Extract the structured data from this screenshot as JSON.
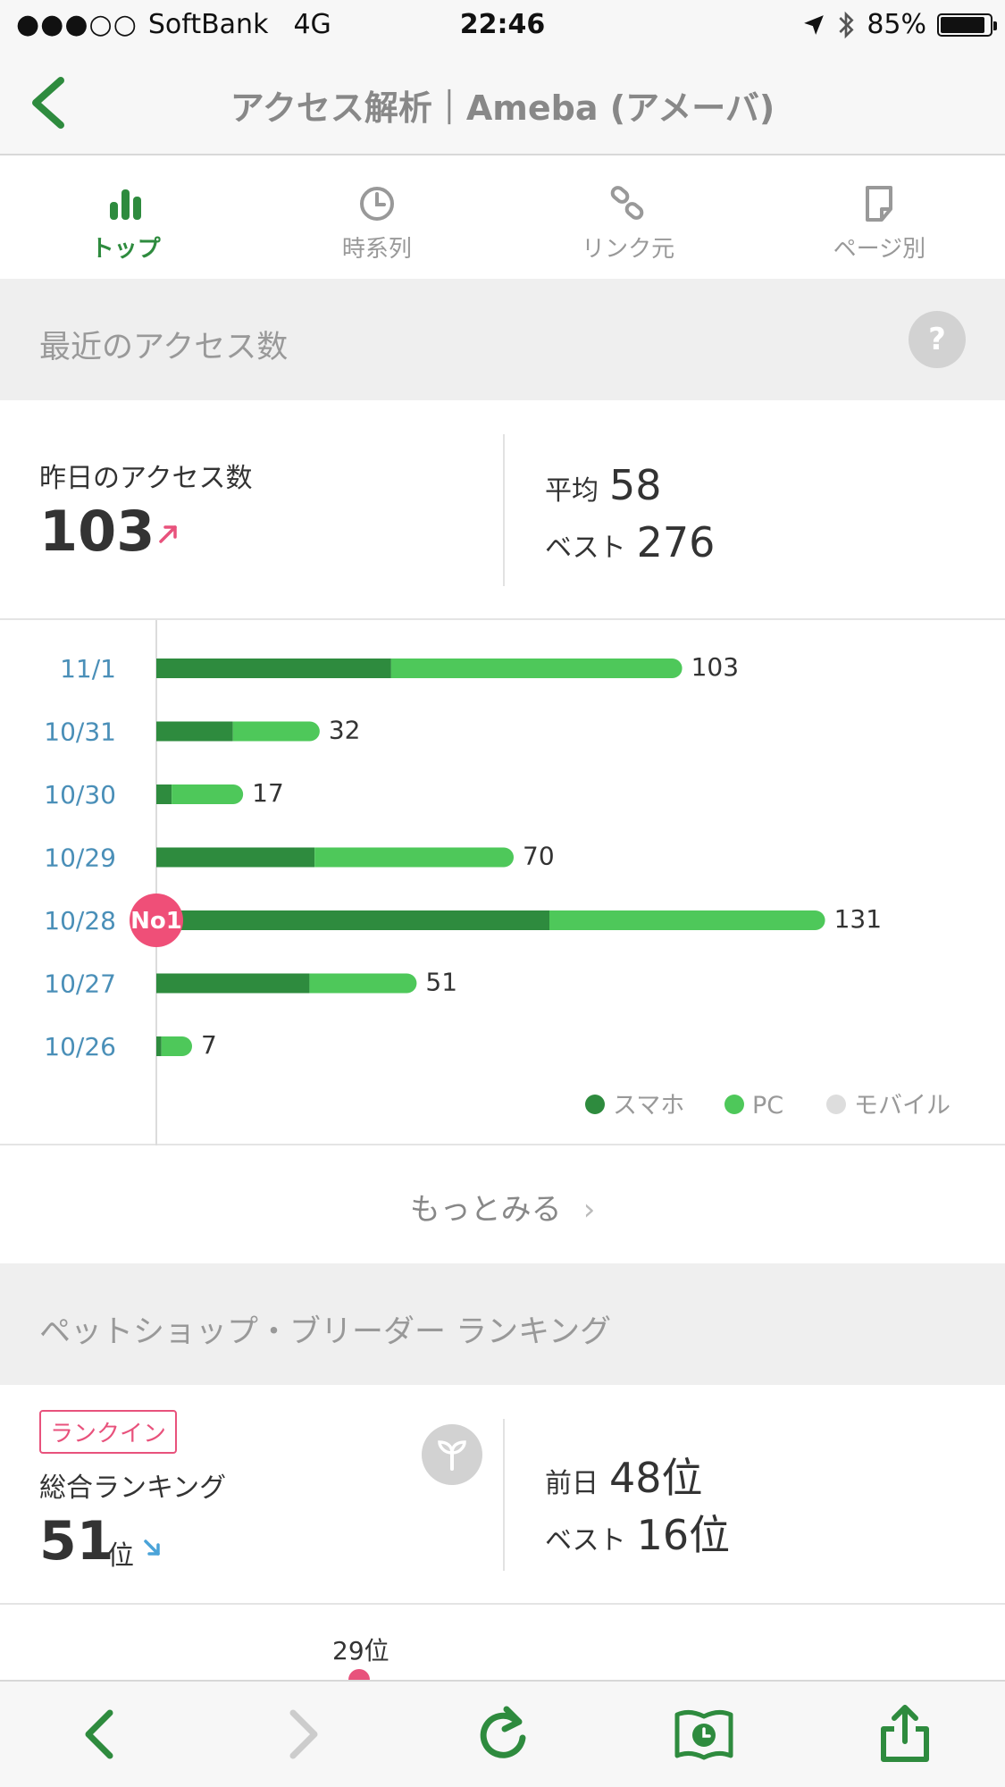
{
  "status_bar": {
    "signal_dots": "●●●○○",
    "carrier": "SoftBank",
    "network": "4G",
    "time": "22:46",
    "battery": "85%"
  },
  "nav": {
    "title": "アクセス解析｜Ameba (アメーバ)"
  },
  "tabs": [
    {
      "label": "トップ",
      "icon": "bar-chart-icon",
      "active": true
    },
    {
      "label": "時系列",
      "icon": "clock-icon",
      "active": false
    },
    {
      "label": "リンク元",
      "icon": "link-icon",
      "active": false
    },
    {
      "label": "ページ別",
      "icon": "page-icon",
      "active": false
    }
  ],
  "access_section": {
    "title": "最近のアクセス数",
    "help_label": "?"
  },
  "summary": {
    "yesterday_label": "昨日のアクセス数",
    "yesterday_value": "103",
    "average_label": "平均",
    "average_value": "58",
    "best_label": "ベスト",
    "best_value": "276"
  },
  "chart_data": {
    "type": "bar",
    "orientation": "horizontal",
    "stacked": true,
    "categories": [
      "11/1",
      "10/31",
      "10/30",
      "10/29",
      "10/28",
      "10/27",
      "10/26"
    ],
    "series": [
      {
        "name": "スマホ",
        "color": "#2e8b3e",
        "values": [
          46,
          15,
          3,
          31,
          77,
          30,
          1
        ]
      },
      {
        "name": "PC",
        "color": "#4ec85a",
        "values": [
          57,
          17,
          14,
          39,
          54,
          21,
          6
        ]
      },
      {
        "name": "モバイル",
        "color": "#dddddd",
        "values": [
          0,
          0,
          0,
          0,
          0,
          0,
          0
        ]
      }
    ],
    "totals": [
      "103",
      "32",
      "17",
      "70",
      "131",
      "51",
      "7"
    ],
    "xlim": [
      0,
      140
    ],
    "top_badge": {
      "category": "10/28",
      "label": "No1"
    },
    "legend": "bottom-right"
  },
  "more": {
    "label": "もっとみる",
    "chevron": "›"
  },
  "ranking_section": {
    "title": "ペットショップ・ブリーダー ランキング"
  },
  "ranking": {
    "badge": "ランクイン",
    "total_label": "総合ランキング",
    "total_value": "51",
    "total_unit": "位",
    "prev_label": "前日",
    "prev_value": "48位",
    "best_label": "ベスト",
    "best_value": "16位",
    "chart_peak_label": "29位"
  },
  "toolbar": {
    "items": [
      "back-icon",
      "forward-icon",
      "reload-icon",
      "bookmarks-icon",
      "share-icon"
    ]
  }
}
